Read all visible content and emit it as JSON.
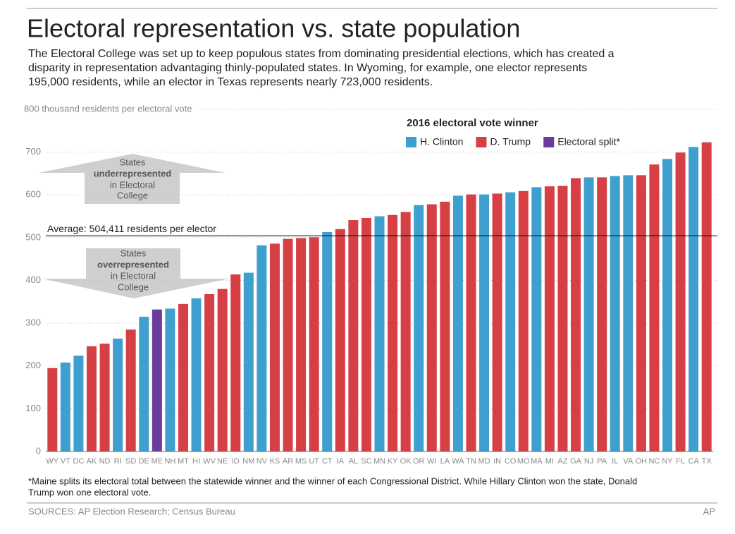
{
  "chart_data": {
    "type": "bar",
    "title": "Electoral representation vs. state population",
    "subtitle": [
      "The Electoral College was set up to keep populous states from dominating presidential elections, which has created a",
      "disparity in representation advantaging thinly-populated states. In Wyoming, for example, one elector represents",
      "195,000 residents, while an elector in Texas represents nearly 723,000 residents."
    ],
    "categories": [
      "WY",
      "VT",
      "DC",
      "AK",
      "ND",
      "RI",
      "SD",
      "DE",
      "ME",
      "NH",
      "MT",
      "HI",
      "WV",
      "NE",
      "ID",
      "NM",
      "NV",
      "KS",
      "AR",
      "MS",
      "UT",
      "CT",
      "IA",
      "AL",
      "SC",
      "MN",
      "KY",
      "OK",
      "OR",
      "WI",
      "LA",
      "WA",
      "TN",
      "MD",
      "IN",
      "CO",
      "MO",
      "MA",
      "MI",
      "AZ",
      "GA",
      "NJ",
      "PA",
      "IL",
      "VA",
      "OH",
      "NC",
      "NY",
      "FL",
      "CA",
      "TX"
    ],
    "values": [
      195,
      208,
      224,
      246,
      252,
      264,
      285,
      315,
      332,
      334,
      345,
      358,
      368,
      380,
      414,
      418,
      482,
      486,
      497,
      499,
      501,
      513,
      520,
      541,
      546,
      550,
      553,
      560,
      576,
      578,
      584,
      598,
      601,
      601,
      603,
      606,
      609,
      618,
      620,
      621,
      639,
      641,
      641,
      644,
      646,
      646,
      671,
      684,
      699,
      712,
      723
    ],
    "colors": [
      "#d64045",
      "#3fa0cf",
      "#3fa0cf",
      "#d64045",
      "#d64045",
      "#3fa0cf",
      "#d64045",
      "#3fa0cf",
      "#6a3d9a",
      "#3fa0cf",
      "#d64045",
      "#3fa0cf",
      "#d64045",
      "#d64045",
      "#d64045",
      "#3fa0cf",
      "#3fa0cf",
      "#d64045",
      "#d64045",
      "#d64045",
      "#d64045",
      "#3fa0cf",
      "#d64045",
      "#d64045",
      "#d64045",
      "#3fa0cf",
      "#d64045",
      "#d64045",
      "#3fa0cf",
      "#d64045",
      "#d64045",
      "#3fa0cf",
      "#d64045",
      "#3fa0cf",
      "#d64045",
      "#3fa0cf",
      "#d64045",
      "#3fa0cf",
      "#d64045",
      "#d64045",
      "#d64045",
      "#3fa0cf",
      "#d64045",
      "#3fa0cf",
      "#3fa0cf",
      "#d64045",
      "#d64045",
      "#3fa0cf",
      "#d64045",
      "#3fa0cf",
      "#d64045"
    ],
    "legend": {
      "title": "2016 electoral vote winner",
      "items": [
        {
          "name": "H. Clinton",
          "color": "#3fa0cf"
        },
        {
          "name": "D. Trump",
          "color": "#d64045"
        },
        {
          "name": "Electoral split*",
          "color": "#6a3d9a"
        }
      ]
    },
    "ylim": [
      0,
      800
    ],
    "yticks": [
      0,
      100,
      200,
      300,
      400,
      500,
      600,
      700,
      {
        "value": 800,
        "label": "800 thousand residents per electoral vote"
      }
    ],
    "grid": true,
    "average": {
      "value": 504.411,
      "label": "Average: 504,411 residents per elector"
    },
    "annotations": [
      [
        "States",
        "underrepresented",
        "in Electoral",
        "College"
      ],
      [
        "States",
        "overrepresented",
        "in Electoral",
        "College"
      ]
    ],
    "footnote": [
      "*Maine splits its electoral total between the statewide winner and the winner of each Congressional District. While Hillary Clinton won the state, Donald",
      "Trump won one electoral vote."
    ],
    "source": "SOURCES: AP Election Research; Census Bureau",
    "credit": "AP"
  }
}
